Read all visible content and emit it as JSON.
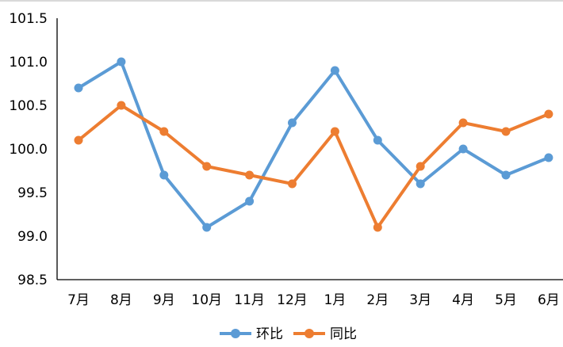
{
  "chart_data": {
    "type": "line",
    "title": "",
    "xlabel": "",
    "ylabel": "",
    "categories": [
      "7月",
      "8月",
      "9月",
      "10月",
      "11月",
      "12月",
      "1月",
      "2月",
      "3月",
      "4月",
      "5月",
      "6月"
    ],
    "ylim": [
      98.5,
      101.5
    ],
    "yticks": [
      "98.5",
      "99.0",
      "99.5",
      "100.0",
      "100.5",
      "101.0",
      "101.5"
    ],
    "ytick_values": [
      98.5,
      99.0,
      99.5,
      100.0,
      100.5,
      101.0,
      101.5
    ],
    "grid": false,
    "legend_position": "bottom",
    "series": [
      {
        "name": "环比",
        "color": "#5b9bd5",
        "values": [
          100.7,
          101.0,
          99.7,
          99.1,
          99.4,
          100.3,
          100.9,
          100.1,
          99.6,
          100.0,
          99.7,
          99.9
        ]
      },
      {
        "name": "同比",
        "color": "#ed7d31",
        "values": [
          100.1,
          100.5,
          100.2,
          99.8,
          99.7,
          99.6,
          100.2,
          99.1,
          99.8,
          100.3,
          100.2,
          100.4
        ]
      }
    ]
  }
}
